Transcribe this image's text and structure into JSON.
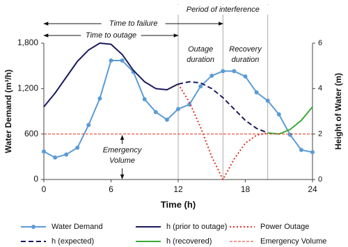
{
  "chart_data": {
    "type": "line",
    "xlabel": "Time (h)",
    "ylabel": "Water Demand (m³/h)",
    "y2label": "Height of Water (m)",
    "xlim": [
      0,
      24
    ],
    "xticks": [
      0,
      6,
      12,
      18,
      24
    ],
    "ylim": [
      0,
      1800
    ],
    "yticks": [
      0,
      600,
      {
        "value": 1200,
        "label": "1,200"
      },
      {
        "value": 1800,
        "label": "1,800"
      }
    ],
    "y2lim": [
      0,
      6
    ],
    "y2ticks": [
      0,
      2,
      4,
      6
    ],
    "legend": "bottom",
    "series": [
      {
        "name": "Water Demand",
        "color": "#5b9bd5",
        "style": "solid",
        "marker": true,
        "x": [
          0,
          1,
          2,
          3,
          4,
          5,
          6,
          7,
          8,
          9,
          10,
          11,
          12,
          13,
          14,
          15,
          16,
          17,
          18,
          19,
          20,
          21,
          22,
          23,
          24
        ],
        "values": [
          370,
          290,
          330,
          420,
          720,
          1070,
          1570,
          1570,
          1420,
          1060,
          890,
          790,
          930,
          990,
          1230,
          1370,
          1430,
          1430,
          1360,
          1150,
          1040,
          860,
          590,
          390,
          360
        ]
      },
      {
        "name": "h (prior to outage)",
        "color": "#1a1a5e",
        "style": "solid",
        "axis": "y2",
        "x": [
          0,
          1,
          2,
          3,
          4,
          5,
          6,
          7,
          8,
          9,
          10,
          11,
          12
        ],
        "values": [
          3.2,
          3.8,
          4.5,
          5.2,
          5.7,
          6.0,
          5.95,
          5.5,
          4.8,
          4.3,
          4.0,
          3.95,
          4.2
        ]
      },
      {
        "name": "Power Outage",
        "color": "#e0301e",
        "style": "dotted",
        "axis": "y2",
        "x": [
          12,
          13,
          14,
          15,
          16,
          17,
          18,
          19,
          20
        ],
        "values": [
          4.2,
          3.4,
          2.3,
          1.0,
          0,
          0.9,
          1.6,
          1.95,
          2.05
        ]
      },
      {
        "name": "h (expected)",
        "color": "#1a1a5e",
        "style": "dashed",
        "axis": "y2",
        "x": [
          12,
          13,
          14,
          15,
          16,
          17,
          18,
          19,
          20
        ],
        "values": [
          4.2,
          4.3,
          4.25,
          4.0,
          3.6,
          3.1,
          2.6,
          2.25,
          2.05
        ]
      },
      {
        "name": "h (recovered)",
        "color": "#3aaa35",
        "style": "solid",
        "axis": "y2",
        "x": [
          20,
          21,
          22,
          23,
          24
        ],
        "values": [
          2.05,
          2.0,
          2.2,
          2.6,
          3.2
        ]
      },
      {
        "name": "Emergency Volume",
        "color": "#e0301e",
        "style": "thin-dashed",
        "axis": "y2",
        "x": [
          0,
          24
        ],
        "values": [
          2,
          2
        ]
      }
    ],
    "vlines": [
      12,
      16,
      20
    ],
    "annotations": [
      {
        "text": "Period of interference",
        "x": [
          12,
          20
        ]
      },
      {
        "text": "Time to failure",
        "x": [
          0,
          16
        ]
      },
      {
        "text": "Time to outage",
        "x": [
          0,
          12
        ]
      },
      {
        "text": "Outage duration",
        "x": [
          12,
          16
        ]
      },
      {
        "text": "Recovery duration",
        "x": [
          16,
          20
        ]
      },
      {
        "text": "Emergency Volume",
        "x": [
          7,
          7
        ]
      }
    ]
  }
}
